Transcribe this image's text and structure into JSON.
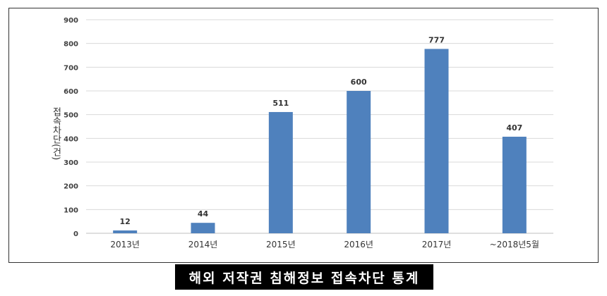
{
  "caption": "해외 저작권 침해정보 접속차단 통계",
  "chart_data": {
    "type": "bar",
    "categories": [
      "2013년",
      "2014년",
      "2015년",
      "2016년",
      "2017년",
      "~2018년5월"
    ],
    "values": [
      12,
      44,
      511,
      600,
      777,
      407
    ],
    "ylabel": "접속차단(건)",
    "ylim": [
      0,
      900
    ],
    "yticks": [
      0,
      100,
      200,
      300,
      400,
      500,
      600,
      700,
      800,
      900
    ],
    "grid": true,
    "bar_color": "#4f81bd",
    "grid_color": "#d9d9d9"
  }
}
